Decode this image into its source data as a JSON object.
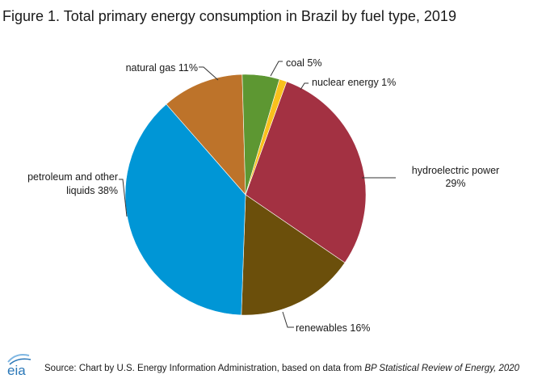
{
  "title": "Figure 1. Total primary energy consumption in Brazil by fuel type, 2019",
  "chart_data": {
    "type": "pie",
    "title": "Figure 1. Total primary energy consumption in Brazil by fuel type, 2019",
    "slices": [
      {
        "name": "hydroelectric power",
        "value": 29,
        "color": "#a33142",
        "label_lines": [
          "hydroelectric power",
          "29%"
        ]
      },
      {
        "name": "renewables",
        "value": 16,
        "color": "#6b4f0b",
        "label_lines": [
          "renewables 16%"
        ]
      },
      {
        "name": "petroleum and other liquids",
        "value": 38,
        "color": "#0096d6",
        "label_lines": [
          "petroleum and other",
          "liquids 38%"
        ]
      },
      {
        "name": "natural gas",
        "value": 11,
        "color": "#bd732a",
        "label_lines": [
          "natural gas 11%"
        ]
      },
      {
        "name": "coal",
        "value": 5,
        "color": "#5d9732",
        "label_lines": [
          "coal 5%"
        ]
      },
      {
        "name": "nuclear energy",
        "value": 1,
        "color": "#f9c11d",
        "label_lines": [
          "nuclear energy 1%"
        ]
      }
    ]
  },
  "source": {
    "prefix": "Source: Chart by U.S. Energy Information Administration, based on data from ",
    "italic": "BP Statistical Review of Energy, 2020"
  },
  "logo": {
    "text": "eia",
    "color": "#2a77b8"
  }
}
